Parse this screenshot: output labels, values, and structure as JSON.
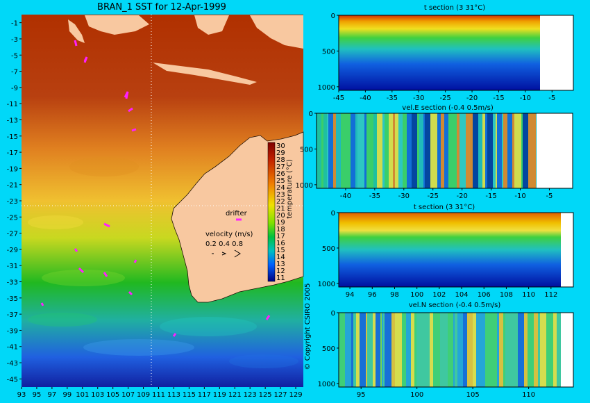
{
  "colors": {
    "background": "#00d8f8",
    "land": "#f8c8a0",
    "drifter": "#ff20ff"
  },
  "chart_data": [
    {
      "type": "heatmap",
      "title": "BRAN_1 SST for 12-Apr-1999",
      "x_ticks": [
        "93",
        "95",
        "97",
        "99",
        "101",
        "103",
        "105",
        "107",
        "109",
        "111",
        "113",
        "115",
        "117",
        "119",
        "121",
        "123",
        "125",
        "127",
        "129"
      ],
      "y_ticks": [
        "-1",
        "-3",
        "-5",
        "-7",
        "-9",
        "-11",
        "-13",
        "-15",
        "-17",
        "-19",
        "-21",
        "-23",
        "-25",
        "-27",
        "-29",
        "-31",
        "-33",
        "-35",
        "-37",
        "-39",
        "-41",
        "-43",
        "-45"
      ],
      "xlim": [
        93,
        130
      ],
      "ylim": [
        -46,
        0
      ],
      "colorbar": {
        "label": "temperature (°C)",
        "ticks": [
          "30",
          "29",
          "28",
          "27",
          "26",
          "25",
          "24",
          "23",
          "22",
          "21",
          "20",
          "19",
          "18",
          "17",
          "16",
          "15",
          "14",
          "13",
          "12",
          "11"
        ]
      },
      "legend": {
        "drifter_label": "drifter",
        "velocity_label": "velocity (m/s)",
        "velocity_values": "0.2 0.4 0.8"
      },
      "copyright": "© Copyright CSIRO 2005"
    },
    {
      "type": "heatmap",
      "title": "t section (3      31°C)",
      "x_ticks": [
        "-45",
        "-40",
        "-35",
        "-30",
        "-25",
        "-20",
        "-15",
        "-10",
        "-5"
      ],
      "y_ticks": [
        "0",
        "500",
        "1000"
      ]
    },
    {
      "type": "heatmap",
      "title": "vel.E section (-0.4      0.5m/s)",
      "x_ticks": [
        "-40",
        "-35",
        "-30",
        "-25",
        "-20",
        "-15",
        "-10",
        "-5"
      ],
      "y_ticks": [
        "0",
        "500",
        "1000"
      ]
    },
    {
      "type": "heatmap",
      "title": "t section (3      31°C)",
      "x_ticks": [
        "94",
        "96",
        "98",
        "100",
        "102",
        "104",
        "106",
        "108",
        "110",
        "112"
      ],
      "y_ticks": [
        "0",
        "500",
        "1000"
      ]
    },
    {
      "type": "heatmap",
      "title": "vel.N section (-0.4      0.5m/s)",
      "x_ticks": [
        "95",
        "100",
        "105",
        "110"
      ],
      "y_ticks": [
        "0",
        "500",
        "1000"
      ]
    }
  ]
}
